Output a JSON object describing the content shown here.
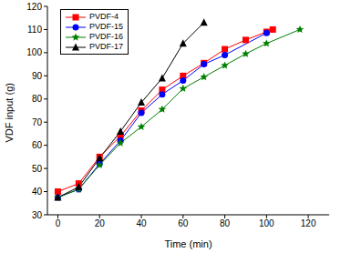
{
  "chart_data": {
    "type": "line",
    "x_label": "Time (min)",
    "y_label": "VDF input (g)",
    "xlim": [
      -5,
      130
    ],
    "xticks": [
      0,
      20,
      40,
      60,
      80,
      100,
      120
    ],
    "ylim": [
      30,
      120
    ],
    "yticks": [
      30,
      40,
      50,
      60,
      70,
      80,
      90,
      100,
      110,
      120
    ],
    "grid": false,
    "legend": "upper left",
    "series": [
      {
        "name": "PVDF-4",
        "color": "#ff0000",
        "marker": "square",
        "line_style": "solid",
        "x": [
          0,
          10,
          20,
          30,
          40,
          50,
          60,
          70,
          80,
          90,
          100,
          103
        ],
        "values": [
          40,
          43.5,
          55,
          64,
          75,
          84,
          90,
          95.5,
          101.5,
          105.5,
          109,
          110
        ]
      },
      {
        "name": "PVDF-15",
        "color": "#0000ff",
        "marker": "circle",
        "line_style": "solid",
        "x": [
          0,
          10,
          20,
          30,
          40,
          50,
          60,
          70,
          80,
          100
        ],
        "values": [
          37.5,
          41,
          52,
          62,
          74,
          82,
          88,
          95,
          99,
          108.5
        ]
      },
      {
        "name": "PVDF-16",
        "color": "#008000",
        "marker": "star",
        "line_style": "solid",
        "x": [
          0,
          10,
          20,
          30,
          40,
          50,
          60,
          70,
          80,
          90,
          100,
          116
        ],
        "values": [
          37.5,
          41,
          51.5,
          61,
          68,
          75.5,
          84.5,
          89.5,
          94.5,
          99.5,
          104,
          110
        ]
      },
      {
        "name": "PVDF-17",
        "color": "#000000",
        "marker": "triangle",
        "line_style": "solid",
        "x": [
          0,
          10,
          20,
          30,
          40,
          50,
          60,
          70
        ],
        "values": [
          37.5,
          42,
          54.5,
          66,
          78.5,
          89,
          104,
          113
        ]
      }
    ]
  }
}
